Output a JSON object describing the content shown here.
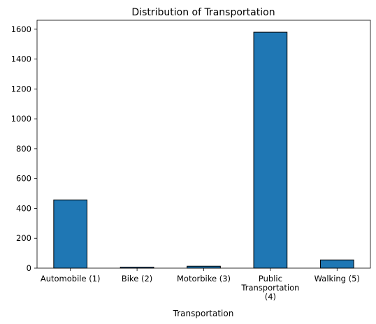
{
  "chart_data": {
    "type": "bar",
    "title": "Distribution of Transportation",
    "xlabel": "Transportation",
    "ylabel": "",
    "categories": [
      [
        "Automobile (1)"
      ],
      [
        "Bike (2)"
      ],
      [
        "Motorbike (3)"
      ],
      [
        "Public",
        "Transportation",
        "(4)"
      ],
      [
        "Walking (5)"
      ]
    ],
    "values": [
      457,
      7,
      13,
      1580,
      55
    ],
    "ylim": [
      0,
      1660
    ],
    "yticks": [
      0,
      200,
      400,
      600,
      800,
      1000,
      1200,
      1400,
      1600
    ],
    "grid": false,
    "legend": "none",
    "colors": {
      "bar": "#1f77b4",
      "edge": "#000000"
    }
  }
}
